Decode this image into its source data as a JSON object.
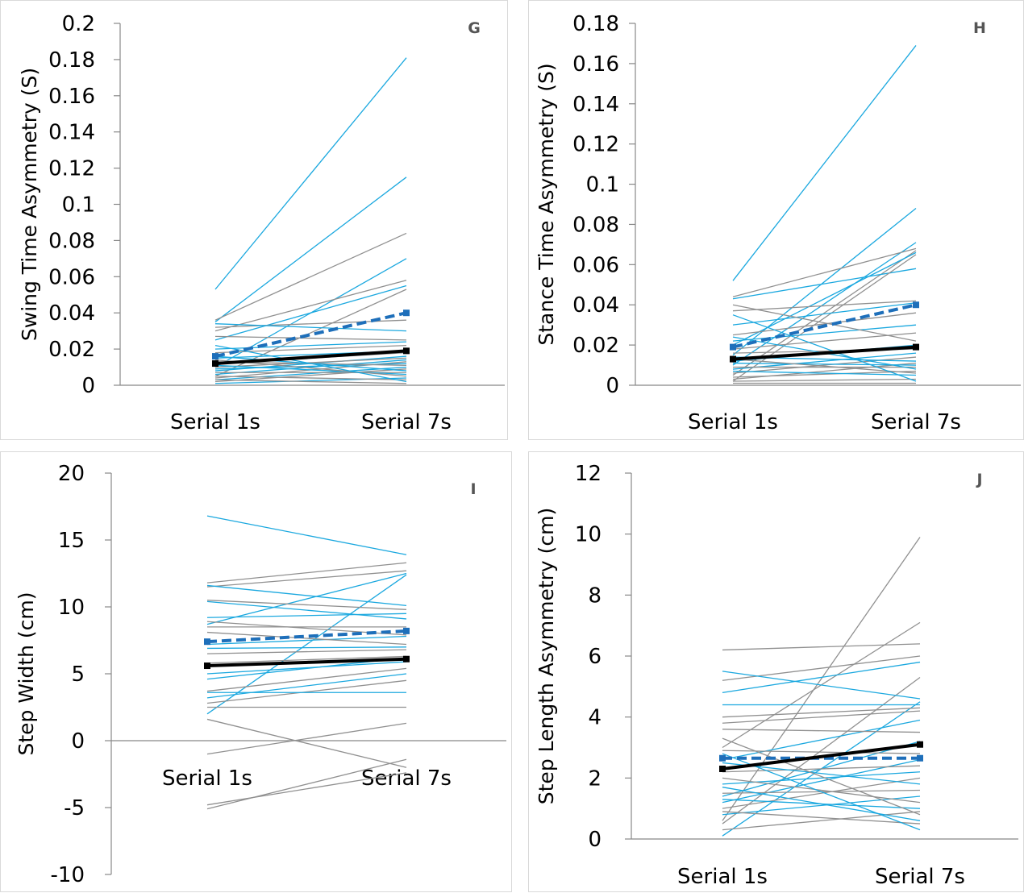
{
  "colors": {
    "gray": "#909090",
    "blue": "#1ba8df",
    "mean_dashed": "#1e6fba",
    "mean_solid": "#000000"
  },
  "chart_data": [
    {
      "panel": "G",
      "type": "line",
      "ylabel": "Swing Time Asymmetry (S)",
      "categories": [
        "Serial 1s",
        "Serial 7s"
      ],
      "ylim": [
        0,
        0.2
      ],
      "ytick_step": 0.02,
      "grid": false,
      "y_tick_labels": [
        "0",
        "0.02",
        "0.04",
        "0.06",
        "0.08",
        "0.1",
        "0.12",
        "0.14",
        "0.16",
        "0.18",
        "0.2"
      ],
      "series": [
        {
          "values": [
            0.053,
            0.181
          ],
          "color": "blue"
        },
        {
          "values": [
            0.035,
            0.115
          ],
          "color": "blue"
        },
        {
          "values": [
            0.036,
            0.084
          ],
          "color": "gray"
        },
        {
          "values": [
            0.01,
            0.07
          ],
          "color": "blue"
        },
        {
          "values": [
            0.03,
            0.058
          ],
          "color": "gray"
        },
        {
          "values": [
            0.025,
            0.055
          ],
          "color": "blue"
        },
        {
          "values": [
            0.005,
            0.053
          ],
          "color": "gray"
        },
        {
          "values": [
            0.032,
            0.036
          ],
          "color": "gray"
        },
        {
          "values": [
            0.034,
            0.03
          ],
          "color": "blue"
        },
        {
          "values": [
            0.027,
            0.025
          ],
          "color": "gray"
        },
        {
          "values": [
            0.02,
            0.024
          ],
          "color": "blue"
        },
        {
          "values": [
            0.018,
            0.022
          ],
          "color": "gray"
        },
        {
          "values": [
            0.015,
            0.019
          ],
          "color": "blue"
        },
        {
          "values": [
            0.012,
            0.018
          ],
          "color": "gray"
        },
        {
          "values": [
            0.008,
            0.016
          ],
          "color": "blue"
        },
        {
          "values": [
            0.01,
            0.015
          ],
          "color": "gray"
        },
        {
          "values": [
            0.006,
            0.014
          ],
          "color": "blue"
        },
        {
          "values": [
            0.004,
            0.013
          ],
          "color": "gray"
        },
        {
          "values": [
            0.009,
            0.012
          ],
          "color": "blue"
        },
        {
          "values": [
            0.013,
            0.011
          ],
          "color": "gray"
        },
        {
          "values": [
            0.003,
            0.01
          ],
          "color": "blue"
        },
        {
          "values": [
            0.002,
            0.009
          ],
          "color": "gray"
        },
        {
          "values": [
            0.016,
            0.008
          ],
          "color": "blue"
        },
        {
          "values": [
            0.007,
            0.007
          ],
          "color": "gray"
        },
        {
          "values": [
            0.011,
            0.006
          ],
          "color": "blue"
        },
        {
          "values": [
            0.014,
            0.005
          ],
          "color": "gray"
        },
        {
          "values": [
            0.001,
            0.004
          ],
          "color": "blue"
        },
        {
          "values": [
            0.005,
            0.003
          ],
          "color": "gray"
        },
        {
          "values": [
            0.022,
            0.002
          ],
          "color": "blue"
        },
        {
          "values": [
            0.003,
            0.001
          ],
          "color": "gray"
        },
        {
          "values": [
            0.016,
            0.04
          ],
          "color": "mean_dashed",
          "style": "dashed"
        },
        {
          "values": [
            0.012,
            0.019
          ],
          "color": "mean_solid",
          "style": "mean"
        }
      ]
    },
    {
      "panel": "H",
      "type": "line",
      "ylabel": "Stance Time Asymmetry (S)",
      "categories": [
        "Serial 1s",
        "Serial 7s"
      ],
      "ylim": [
        0,
        0.18
      ],
      "ytick_step": 0.02,
      "grid": false,
      "y_tick_labels": [
        "0",
        "0.02",
        "0.04",
        "0.06",
        "0.08",
        "0.1",
        "0.12",
        "0.14",
        "0.16",
        "0.18"
      ],
      "series": [
        {
          "values": [
            0.052,
            0.169
          ],
          "color": "blue"
        },
        {
          "values": [
            0.015,
            0.088
          ],
          "color": "blue"
        },
        {
          "values": [
            0.01,
            0.071
          ],
          "color": "blue"
        },
        {
          "values": [
            0.044,
            0.068
          ],
          "color": "gray"
        },
        {
          "values": [
            0.005,
            0.067
          ],
          "color": "gray"
        },
        {
          "values": [
            0.043,
            0.058
          ],
          "color": "blue"
        },
        {
          "values": [
            0.02,
            0.066
          ],
          "color": "blue"
        },
        {
          "values": [
            0.002,
            0.065
          ],
          "color": "gray"
        },
        {
          "values": [
            0.037,
            0.042
          ],
          "color": "gray"
        },
        {
          "values": [
            0.03,
            0.041
          ],
          "color": "blue"
        },
        {
          "values": [
            0.025,
            0.036
          ],
          "color": "gray"
        },
        {
          "values": [
            0.022,
            0.03
          ],
          "color": "blue"
        },
        {
          "values": [
            0.018,
            0.026
          ],
          "color": "gray"
        },
        {
          "values": [
            0.04,
            0.022
          ],
          "color": "gray"
        },
        {
          "values": [
            0.012,
            0.02
          ],
          "color": "blue"
        },
        {
          "values": [
            0.016,
            0.018
          ],
          "color": "gray"
        },
        {
          "values": [
            0.008,
            0.016
          ],
          "color": "blue"
        },
        {
          "values": [
            0.006,
            0.014
          ],
          "color": "gray"
        },
        {
          "values": [
            0.014,
            0.012
          ],
          "color": "blue"
        },
        {
          "values": [
            0.003,
            0.011
          ],
          "color": "gray"
        },
        {
          "values": [
            0.011,
            0.01
          ],
          "color": "blue"
        },
        {
          "values": [
            0.009,
            0.009
          ],
          "color": "gray"
        },
        {
          "values": [
            0.024,
            0.008
          ],
          "color": "blue"
        },
        {
          "values": [
            0.004,
            0.007
          ],
          "color": "gray"
        },
        {
          "values": [
            0.013,
            0.006
          ],
          "color": "gray"
        },
        {
          "values": [
            0.007,
            0.005
          ],
          "color": "blue"
        },
        {
          "values": [
            0.002,
            0.003
          ],
          "color": "gray"
        },
        {
          "values": [
            0.035,
            0.002
          ],
          "color": "blue"
        },
        {
          "values": [
            0.001,
            0.001
          ],
          "color": "gray"
        },
        {
          "values": [
            0.019,
            0.04
          ],
          "color": "mean_dashed",
          "style": "dashed"
        },
        {
          "values": [
            0.013,
            0.019
          ],
          "color": "mean_solid",
          "style": "mean"
        }
      ]
    },
    {
      "panel": "I",
      "type": "line",
      "ylabel": "Step Width (cm)",
      "categories": [
        "Serial 1s",
        "Serial 7s"
      ],
      "ylim": [
        -10,
        20
      ],
      "ytick_step": 5,
      "grid": false,
      "y_tick_labels": [
        "-10",
        "-5",
        "0",
        "5",
        "10",
        "15",
        "20"
      ],
      "series": [
        {
          "values": [
            16.8,
            13.9
          ],
          "color": "blue"
        },
        {
          "values": [
            11.8,
            13.3
          ],
          "color": "gray"
        },
        {
          "values": [
            11.5,
            12.7
          ],
          "color": "gray"
        },
        {
          "values": [
            8.7,
            12.5
          ],
          "color": "blue"
        },
        {
          "values": [
            2.0,
            12.4
          ],
          "color": "blue"
        },
        {
          "values": [
            11.6,
            10.1
          ],
          "color": "blue"
        },
        {
          "values": [
            10.5,
            9.8
          ],
          "color": "gray"
        },
        {
          "values": [
            9.2,
            9.5
          ],
          "color": "blue"
        },
        {
          "values": [
            10.4,
            9.1
          ],
          "color": "blue"
        },
        {
          "values": [
            8.5,
            8.5
          ],
          "color": "gray"
        },
        {
          "values": [
            8.9,
            7.9
          ],
          "color": "gray"
        },
        {
          "values": [
            7.2,
            7.8
          ],
          "color": "blue"
        },
        {
          "values": [
            8.1,
            7.2
          ],
          "color": "gray"
        },
        {
          "values": [
            6.9,
            7.0
          ],
          "color": "blue"
        },
        {
          "values": [
            6.5,
            6.8
          ],
          "color": "gray"
        },
        {
          "values": [
            5.8,
            6.3
          ],
          "color": "gray"
        },
        {
          "values": [
            4.6,
            6.2
          ],
          "color": "blue"
        },
        {
          "values": [
            5.0,
            5.9
          ],
          "color": "blue"
        },
        {
          "values": [
            3.7,
            5.4
          ],
          "color": "gray"
        },
        {
          "values": [
            3.2,
            5.0
          ],
          "color": "blue"
        },
        {
          "values": [
            2.8,
            4.5
          ],
          "color": "gray"
        },
        {
          "values": [
            3.6,
            3.6
          ],
          "color": "blue"
        },
        {
          "values": [
            2.5,
            2.5
          ],
          "color": "gray"
        },
        {
          "values": [
            1.6,
            -2.0
          ],
          "color": "gray"
        },
        {
          "values": [
            -1.0,
            1.3
          ],
          "color": "gray"
        },
        {
          "values": [
            -4.8,
            -2.4
          ],
          "color": "gray"
        },
        {
          "values": [
            -5.1,
            -1.4
          ],
          "color": "gray"
        },
        {
          "values": [
            7.4,
            8.2
          ],
          "color": "mean_dashed",
          "style": "dashed"
        },
        {
          "values": [
            5.6,
            6.1
          ],
          "color": "mean_solid",
          "style": "mean"
        }
      ]
    },
    {
      "panel": "J",
      "type": "line",
      "ylabel": "Step Length Asymmetry (cm)",
      "categories": [
        "Serial 1s",
        "Serial 7s"
      ],
      "ylim": [
        0,
        12
      ],
      "ytick_step": 2,
      "grid": false,
      "y_tick_labels": [
        "0",
        "2",
        "4",
        "6",
        "8",
        "10",
        "12"
      ],
      "series": [
        {
          "values": [
            0.6,
            9.9
          ],
          "color": "gray"
        },
        {
          "values": [
            3.0,
            7.1
          ],
          "color": "gray"
        },
        {
          "values": [
            6.2,
            6.4
          ],
          "color": "gray"
        },
        {
          "values": [
            5.2,
            6.0
          ],
          "color": "gray"
        },
        {
          "values": [
            4.8,
            5.8
          ],
          "color": "blue"
        },
        {
          "values": [
            0.5,
            5.3
          ],
          "color": "gray"
        },
        {
          "values": [
            5.5,
            4.6
          ],
          "color": "blue"
        },
        {
          "values": [
            0.1,
            4.5
          ],
          "color": "blue"
        },
        {
          "values": [
            4.4,
            4.4
          ],
          "color": "blue"
        },
        {
          "values": [
            4.0,
            4.3
          ],
          "color": "gray"
        },
        {
          "values": [
            3.8,
            4.2
          ],
          "color": "gray"
        },
        {
          "values": [
            2.6,
            3.9
          ],
          "color": "blue"
        },
        {
          "values": [
            3.6,
            3.5
          ],
          "color": "gray"
        },
        {
          "values": [
            1.4,
            3.2
          ],
          "color": "blue"
        },
        {
          "values": [
            2.9,
            2.8
          ],
          "color": "gray"
        },
        {
          "values": [
            1.2,
            2.6
          ],
          "color": "blue"
        },
        {
          "values": [
            2.2,
            2.4
          ],
          "color": "gray"
        },
        {
          "values": [
            1.8,
            2.2
          ],
          "color": "blue"
        },
        {
          "values": [
            1.0,
            2.0
          ],
          "color": "gray"
        },
        {
          "values": [
            2.5,
            1.8
          ],
          "color": "blue"
        },
        {
          "values": [
            1.5,
            1.6
          ],
          "color": "gray"
        },
        {
          "values": [
            0.8,
            1.4
          ],
          "color": "blue"
        },
        {
          "values": [
            2.0,
            1.2
          ],
          "color": "gray"
        },
        {
          "values": [
            1.3,
            1.0
          ],
          "color": "blue"
        },
        {
          "values": [
            0.3,
            0.9
          ],
          "color": "gray"
        },
        {
          "values": [
            3.3,
            0.8
          ],
          "color": "gray"
        },
        {
          "values": [
            1.7,
            0.6
          ],
          "color": "blue"
        },
        {
          "values": [
            0.9,
            0.5
          ],
          "color": "gray"
        },
        {
          "values": [
            2.8,
            0.3
          ],
          "color": "blue"
        },
        {
          "values": [
            2.65,
            2.65
          ],
          "color": "mean_dashed",
          "style": "dashed"
        },
        {
          "values": [
            2.3,
            3.1
          ],
          "color": "mean_solid",
          "style": "mean"
        }
      ]
    }
  ]
}
